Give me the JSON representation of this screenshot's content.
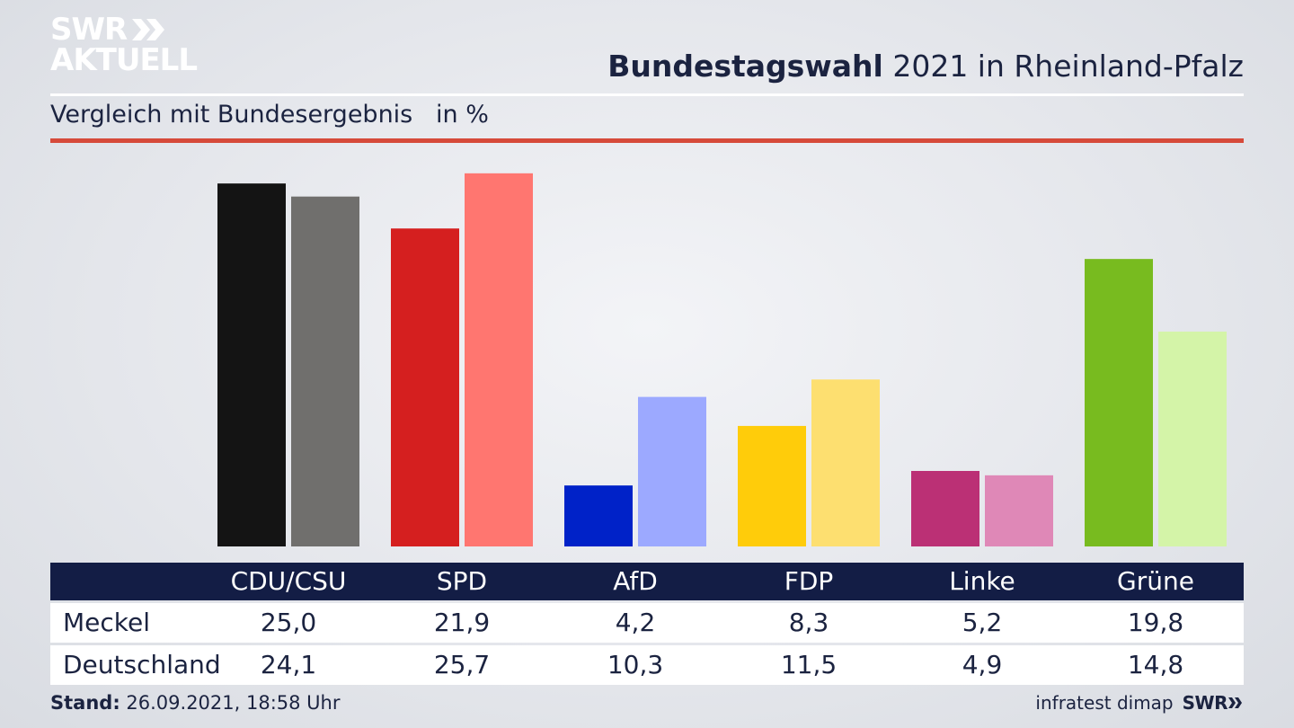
{
  "brand": {
    "logo_line1": "SWR",
    "logo_line2": "AKTUELL",
    "footer_logo": "SWR"
  },
  "header": {
    "title_bold": "Bundestagswahl",
    "title_rest": " 2021 in Rheinland-Pfalz",
    "subtitle": "Vergleich mit Bundesergebnis   in %"
  },
  "footer": {
    "stand_label": "Stand:",
    "stand_value": " 26.09.2021, 18:58 Uhr",
    "source": "infratest dimap"
  },
  "colors": {
    "rule_red": "#d64a3a",
    "table_header": "#131d45",
    "text": "#1b2340"
  },
  "chart_data": {
    "type": "bar",
    "categories": [
      "CDU/CSU",
      "SPD",
      "AfD",
      "FDP",
      "Linke",
      "Grüne"
    ],
    "series": [
      {
        "name": "Meckel",
        "values": [
          25.0,
          21.9,
          4.2,
          8.3,
          5.2,
          19.8
        ],
        "labels": [
          "25,0",
          "21,9",
          "4,2",
          "8,3",
          "5,2",
          "19,8"
        ],
        "colors": [
          "#141414",
          "#d51f1f",
          "#0022c8",
          "#ffcc0a",
          "#bb3075",
          "#78bb1f"
        ]
      },
      {
        "name": "Deutschland",
        "values": [
          24.1,
          25.7,
          10.3,
          11.5,
          4.9,
          14.8
        ],
        "labels": [
          "24,1",
          "25,7",
          "10,3",
          "11,5",
          "4,9",
          "14,8"
        ],
        "colors": [
          "#706f6d",
          "#ff7670",
          "#9ca9ff",
          "#fddf70",
          "#df88b7",
          "#d4f4a8"
        ]
      }
    ],
    "ylim": [
      0,
      26
    ]
  }
}
